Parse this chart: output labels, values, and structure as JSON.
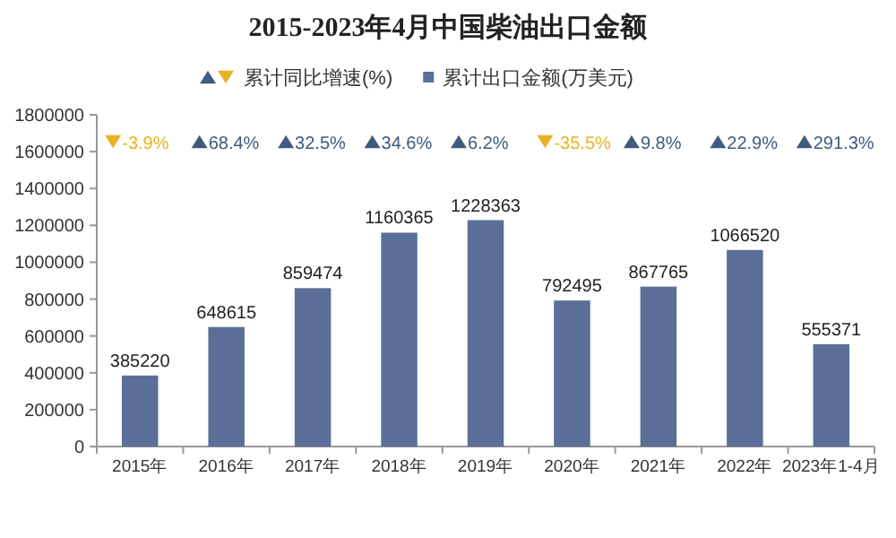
{
  "chart_data": [
    {
      "type": "bar",
      "title": "2015-2023年4月中国柴油出口金额",
      "categories": [
        "2015年",
        "2016年",
        "2017年",
        "2018年",
        "2019年",
        "2020年",
        "2021年",
        "2022年",
        "2023年1-4月"
      ],
      "series": [
        {
          "name": "累计出口金额(万美元)",
          "color": "#5b6f98",
          "values": [
            385220,
            648615,
            859474,
            1160365,
            1228363,
            792495,
            867765,
            1066520,
            555371
          ]
        }
      ],
      "data_labels": true,
      "ylim": [
        0,
        1800000
      ],
      "yticks": [
        0,
        200000,
        400000,
        600000,
        800000,
        1000000,
        1200000,
        1400000,
        1600000,
        1800000
      ],
      "legend": "top"
    },
    {
      "type": "other",
      "series": [
        {
          "name": "累计同比增速(%)",
          "values": [
            -3.9,
            68.4,
            32.5,
            34.6,
            6.2,
            -35.5,
            9.8,
            22.9,
            291.3
          ],
          "value_labels": [
            "-3.9%",
            "68.4%",
            "32.5%",
            "34.6%",
            "6.2%",
            "-35.5%",
            "9.8%",
            "22.9%",
            "291.3%"
          ],
          "colors": [
            "#e6b422",
            "#3f5b7d",
            "#3f5b7d",
            "#3f5b7d",
            "#3f5b7d",
            "#e6b422",
            "#3f5b7d",
            "#3f5b7d",
            "#3f5b7d"
          ]
        }
      ],
      "legend": "top"
    }
  ]
}
